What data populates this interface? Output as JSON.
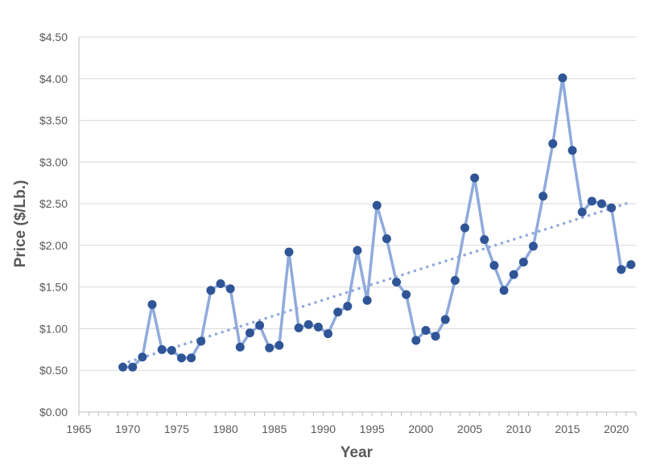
{
  "chart_data": {
    "type": "line",
    "title": "",
    "xlabel": "Year",
    "ylabel": "Price ($/Lb.)",
    "xlim": [
      1965,
      2022
    ],
    "ylim": [
      0,
      4.5
    ],
    "x_ticks": [
      1965,
      1970,
      1975,
      1980,
      1985,
      1990,
      1995,
      2000,
      2005,
      2010,
      2015,
      2020
    ],
    "y_ticks": [
      0,
      0.5,
      1.0,
      1.5,
      2.0,
      2.5,
      3.0,
      3.5,
      4.0,
      4.5
    ],
    "y_tick_labels": [
      "$0.00",
      "$0.50",
      "$1.00",
      "$1.50",
      "$2.00",
      "$2.50",
      "$3.00",
      "$3.50",
      "$4.00",
      "$4.50"
    ],
    "grid": "horizontal",
    "series": [
      {
        "color": "#8FAADC",
        "marker_color": "#2F5597",
        "x": [
          1970,
          1971,
          1972,
          1973,
          1974,
          1975,
          1976,
          1977,
          1978,
          1979,
          1980,
          1981,
          1982,
          1983,
          1984,
          1985,
          1986,
          1987,
          1988,
          1989,
          1990,
          1991,
          1992,
          1993,
          1994,
          1995,
          1996,
          1997,
          1998,
          1999,
          2000,
          2001,
          2002,
          2003,
          2004,
          2005,
          2006,
          2007,
          2008,
          2009,
          2010,
          2011,
          2012,
          2013,
          2014,
          2015,
          2016,
          2017,
          2018,
          2019,
          2020,
          2021,
          2022
        ],
        "y": [
          0.54,
          0.54,
          0.66,
          1.29,
          0.75,
          0.74,
          0.65,
          0.65,
          0.85,
          1.46,
          1.54,
          1.48,
          0.78,
          0.95,
          1.04,
          0.77,
          0.8,
          1.92,
          1.01,
          1.05,
          1.02,
          0.94,
          1.2,
          1.27,
          1.94,
          1.34,
          2.48,
          2.08,
          1.56,
          1.41,
          0.86,
          0.98,
          0.91,
          1.11,
          1.58,
          2.21,
          2.81,
          2.07,
          1.76,
          1.46,
          1.65,
          1.8,
          1.99,
          2.59,
          3.22,
          4.01,
          3.14,
          2.4,
          2.53,
          2.5,
          2.45,
          1.71,
          1.77
        ]
      }
    ],
    "trendline": {
      "type": "linear",
      "style": "dotted",
      "color": "#8FAADC",
      "x": [
        1969.5,
        2021.5
      ],
      "y": [
        0.58,
        2.52
      ]
    }
  }
}
